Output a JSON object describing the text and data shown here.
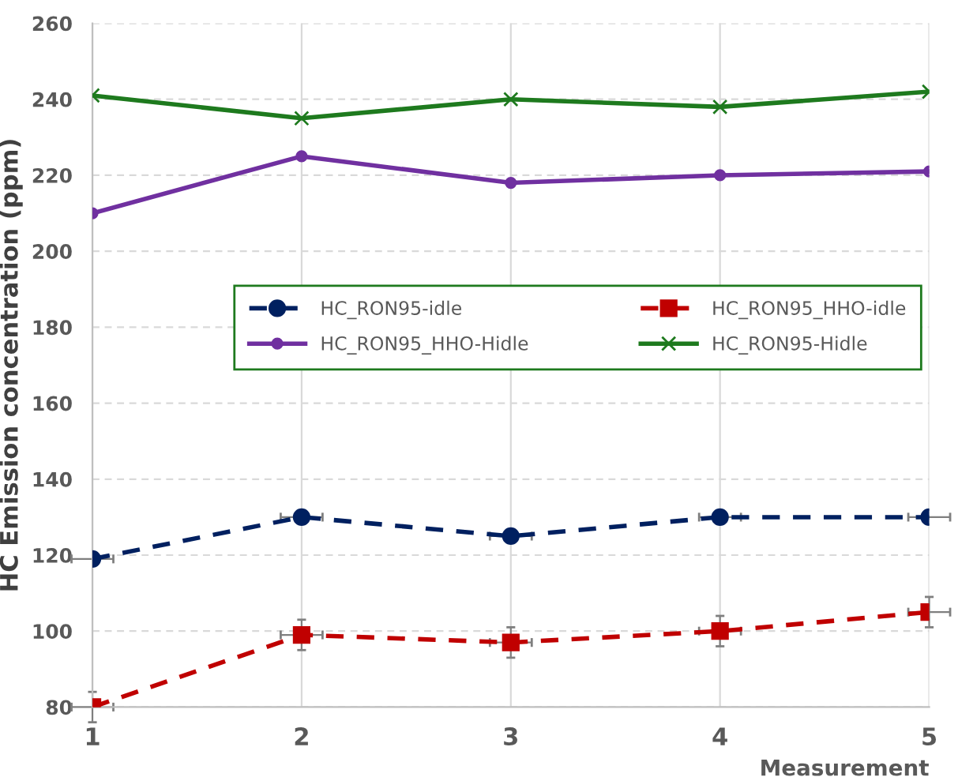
{
  "chart_data": {
    "type": "line",
    "xlabel": "Measurement",
    "ylabel": "HC Emission concentration (ppm)",
    "x": [
      1,
      2,
      3,
      4,
      5
    ],
    "xlim": [
      1,
      5
    ],
    "xticks": [
      1,
      2,
      3,
      4,
      5
    ],
    "ylim": [
      80,
      260
    ],
    "yticks": [
      80,
      100,
      120,
      140,
      160,
      180,
      200,
      220,
      240,
      260
    ],
    "grid": true,
    "legend": "center",
    "series": [
      {
        "name": "HC_RON95-idle",
        "color": "#002060",
        "marker": "circle",
        "line_style": "dashed",
        "values": [
          119,
          130,
          125,
          130,
          130
        ],
        "xerrors": [
          0.1,
          0.1,
          0.1,
          0.1,
          0.1
        ]
      },
      {
        "name": "HC_RON95_HHO-idle",
        "color": "#c00000",
        "marker": "square",
        "line_style": "dashed",
        "values": [
          80,
          99,
          97,
          100,
          105
        ],
        "errors": [
          4,
          4,
          4,
          4,
          4
        ],
        "xerrors": [
          0.1,
          0.1,
          0.1,
          0.1,
          0.1
        ]
      },
      {
        "name": "HC_RON95_HHO-Hidle",
        "color": "#7030a0",
        "marker": "circle",
        "line_style": "solid",
        "values": [
          210,
          225,
          218,
          220,
          221
        ]
      },
      {
        "name": "HC_RON95-Hidle",
        "color": "#1e7a1e",
        "marker": "cross",
        "line_style": "solid",
        "values": [
          241,
          235,
          240,
          238,
          242
        ]
      }
    ]
  }
}
